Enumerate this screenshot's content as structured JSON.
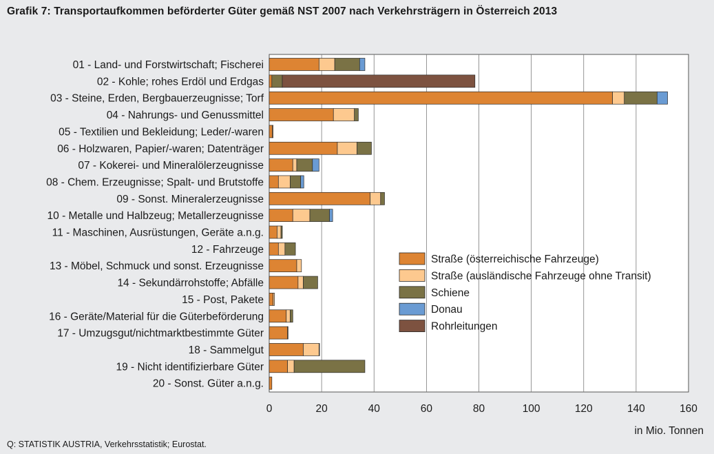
{
  "chart_data": {
    "type": "bar",
    "orientation": "horizontal",
    "stacked": true,
    "title": "Grafik  7: Transportaufkommen beförderter Güter gemäß NST 2007 nach Verkehrsträgern in Österreich 2013",
    "xlabel": "in Mio. Tonnen",
    "xlim": [
      0,
      160
    ],
    "xticks": [
      0,
      20,
      40,
      60,
      80,
      100,
      120,
      140,
      160
    ],
    "grid": "vertical",
    "legend_position": "right-center",
    "source": "Q: STATISTIK AUSTRIA, Verkehrsstatistik; Eurostat.",
    "categories": [
      "01 - Land- und Forstwirtschaft; Fischerei",
      "02 - Kohle; rohes Erdöl und Erdgas",
      "03 - Steine, Erden, Bergbauerzeugnisse; Torf",
      "04 - Nahrungs- und Genussmittel",
      "05 - Textilien und Bekleidung; Leder/-waren",
      "06 - Holzwaren, Papier/-waren; Datenträger",
      "07 - Kokerei- und Mineralölerzeugnisse",
      "08 - Chem. Erzeugnisse; Spalt- und Brutstoffe",
      "09 - Sonst. Mineralerzeugnisse",
      "10 - Metalle und Halbzeug; Metallerzeugnisse",
      "11 - Maschinen, Ausrüstungen, Geräte a.n.g.",
      "12 - Fahrzeuge",
      "13 - Möbel, Schmuck und sonst. Erzeugnisse",
      "14 - Sekundärrohstoffe; Abfälle",
      "15 - Post, Pakete",
      "16 - Geräte/Material für die Güterbeförderung",
      "17 - Umzugsgut/nichtmarktbestimmte Güter",
      "18 - Sammelgut",
      "19 - Nicht identifizierbare Güter",
      "20 - Sonst. Güter a.n.g."
    ],
    "series": [
      {
        "name": "Straße (österreichische Fahrzeuge)",
        "color": "#dd8433",
        "values": [
          19,
          1,
          131,
          24.5,
          1.2,
          26,
          9,
          3.5,
          38.5,
          9,
          3,
          3.5,
          10.5,
          11,
          1.5,
          6.5,
          7,
          13,
          7,
          1
        ]
      },
      {
        "name": "Straße (ausländische Fahrzeuge ohne Transit)",
        "color": "#fdc98f",
        "values": [
          6,
          0,
          4.5,
          8,
          0.3,
          7.5,
          1.5,
          4.5,
          4,
          6.5,
          1.5,
          2.5,
          1.8,
          2,
          0.5,
          1.5,
          0.2,
          6,
          2.5,
          0
        ]
      },
      {
        "name": "Schiene",
        "color": "#7a7245",
        "values": [
          9.5,
          4,
          12.5,
          1.5,
          0,
          5.5,
          6,
          4,
          1.5,
          7.5,
          0.5,
          4,
          0,
          5.5,
          0,
          1,
          0,
          0.2,
          27,
          0
        ]
      },
      {
        "name": "Donau",
        "color": "#6a9bd3",
        "values": [
          2,
          0,
          4,
          0,
          0,
          0,
          2.5,
          1.2,
          0,
          1.2,
          0,
          0,
          0,
          0,
          0,
          0,
          0,
          0,
          0,
          0
        ]
      },
      {
        "name": "Rohrleitungen",
        "color": "#7d5240",
        "values": [
          0,
          73.5,
          0,
          0,
          0,
          0,
          0,
          0,
          0,
          0,
          0,
          0,
          0,
          0,
          0,
          0,
          0,
          0,
          0,
          0
        ]
      }
    ]
  }
}
